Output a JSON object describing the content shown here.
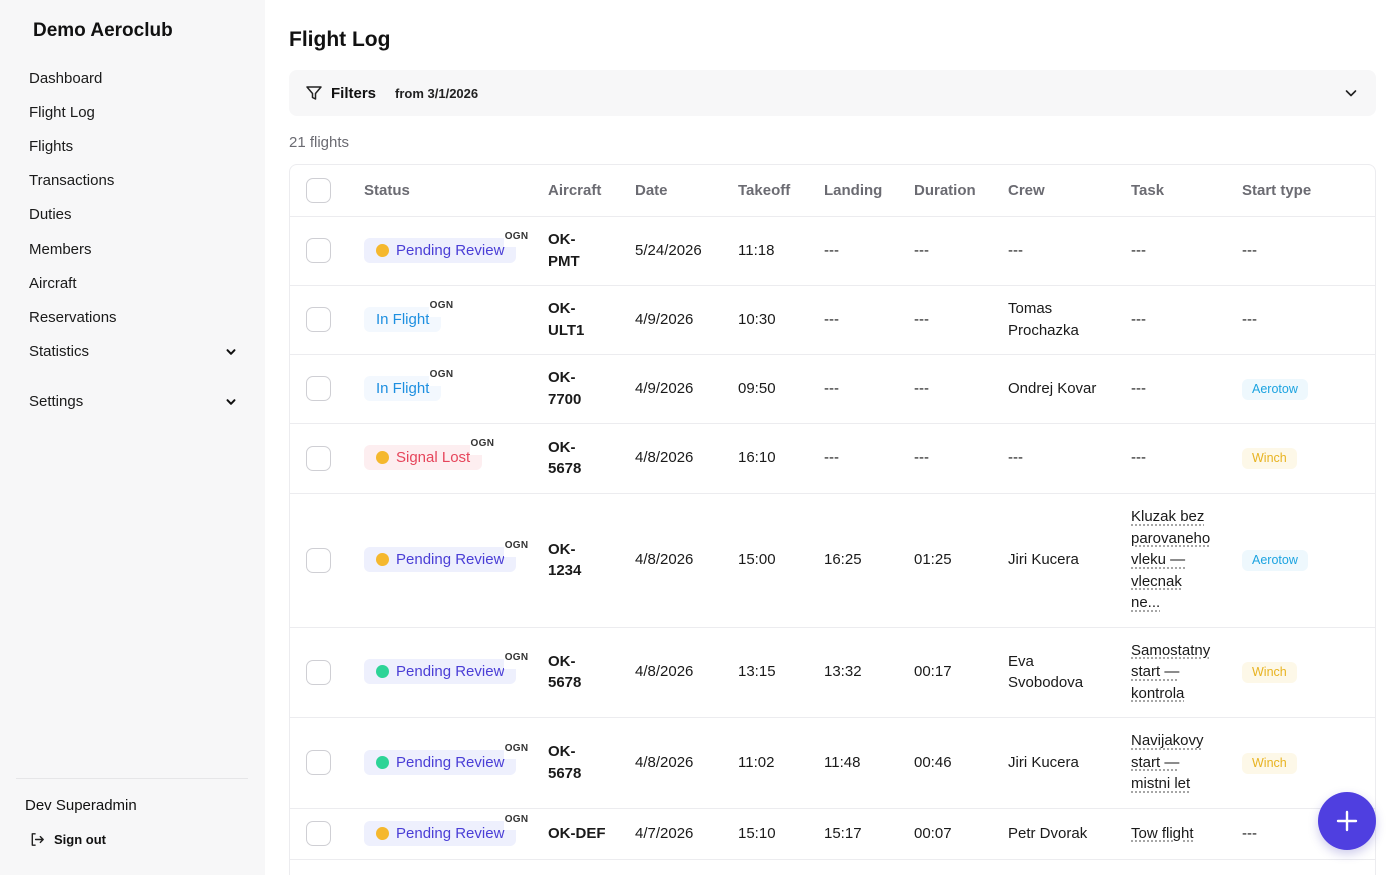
{
  "app": {
    "brand": "Demo Aeroclub"
  },
  "sidebar": {
    "items": [
      {
        "label": "Dashboard"
      },
      {
        "label": "Flight Log"
      },
      {
        "label": "Flights"
      },
      {
        "label": "Transactions"
      },
      {
        "label": "Duties"
      },
      {
        "label": "Members"
      },
      {
        "label": "Aircraft"
      },
      {
        "label": "Reservations"
      },
      {
        "label": "Statistics"
      },
      {
        "label": "Settings"
      }
    ],
    "user": "Dev Superadmin",
    "signout": "Sign out"
  },
  "page": {
    "title": "Flight Log",
    "filters_label": "Filters",
    "filters_range": "from 3/1/2026",
    "count": "21 flights"
  },
  "table": {
    "headers": [
      "Status",
      "Aircraft",
      "Date",
      "Takeoff",
      "Landing",
      "Duration",
      "Crew",
      "Task",
      "Start type"
    ],
    "rows": [
      {
        "status": "Pending Review",
        "status_kind": "pending",
        "dot": "#f5b82e",
        "ogn": "OGN",
        "aircraft": "OK-\nPMT",
        "date": "5/24/2026",
        "takeoff": "11:18",
        "landing": "---",
        "duration": "---",
        "crew": "---",
        "task": "---",
        "start": "---"
      },
      {
        "status": "In Flight",
        "status_kind": "inflight",
        "dot": "",
        "ogn": "OGN",
        "aircraft": "OK-\nULT1",
        "date": "4/9/2026",
        "takeoff": "10:30",
        "landing": "---",
        "duration": "---",
        "crew": "Tomas\nProchazka",
        "task": "---",
        "start": "---"
      },
      {
        "status": "In Flight",
        "status_kind": "inflight",
        "dot": "",
        "ogn": "OGN",
        "aircraft": "OK-\n7700",
        "date": "4/9/2026",
        "takeoff": "09:50",
        "landing": "---",
        "duration": "---",
        "crew": "Ondrej Kovar",
        "task": "---",
        "start": "Aerotow"
      },
      {
        "status": "Signal Lost",
        "status_kind": "lost",
        "dot": "#f5b82e",
        "ogn": "OGN",
        "aircraft": "OK-\n5678",
        "date": "4/8/2026",
        "takeoff": "16:10",
        "landing": "---",
        "duration": "---",
        "crew": "---",
        "task": "---",
        "start": "Winch"
      },
      {
        "status": "Pending Review",
        "status_kind": "pending",
        "dot": "#f5b82e",
        "ogn": "OGN",
        "aircraft": "OK-\n1234",
        "date": "4/8/2026",
        "takeoff": "15:00",
        "landing": "16:25",
        "duration": "01:25",
        "crew": "Jiri Kucera",
        "task": "Kluzak bez\nparovaneho\nvleku —\nvlecnak\nne...",
        "start": "Aerotow"
      },
      {
        "status": "Pending Review",
        "status_kind": "pending",
        "dot": "#2dd497",
        "ogn": "OGN",
        "aircraft": "OK-\n5678",
        "date": "4/8/2026",
        "takeoff": "13:15",
        "landing": "13:32",
        "duration": "00:17",
        "crew": "Eva\nSvobodova",
        "task": "Samostatny\nstart —\nkontrola",
        "start": "Winch"
      },
      {
        "status": "Pending Review",
        "status_kind": "pending",
        "dot": "#2dd497",
        "ogn": "OGN",
        "aircraft": "OK-\n5678",
        "date": "4/8/2026",
        "takeoff": "11:02",
        "landing": "11:48",
        "duration": "00:46",
        "crew": "Jiri Kucera",
        "task": "Navijakovy\nstart —\nmistni let",
        "start": "Winch"
      },
      {
        "status": "Pending Review",
        "status_kind": "pending",
        "dot": "#f5b82e",
        "ogn": "OGN",
        "aircraft": "OK-DEF",
        "date": "4/7/2026",
        "takeoff": "15:10",
        "landing": "15:17",
        "duration": "00:07",
        "crew": "Petr Dvorak",
        "task": "Tow flight",
        "start": "---"
      }
    ]
  },
  "colors": {
    "accent": "#4f3fe0",
    "pending_text": "#4a3ed6",
    "inflight_text": "#1d8fe0",
    "lost_text": "#e6455b",
    "dot_yellow": "#f5b82e",
    "dot_green": "#2dd497"
  },
  "icons": {
    "filter": "funnel-icon",
    "chevron": "chevron-down-icon",
    "signout": "sign-out-icon",
    "add": "plus-icon"
  }
}
